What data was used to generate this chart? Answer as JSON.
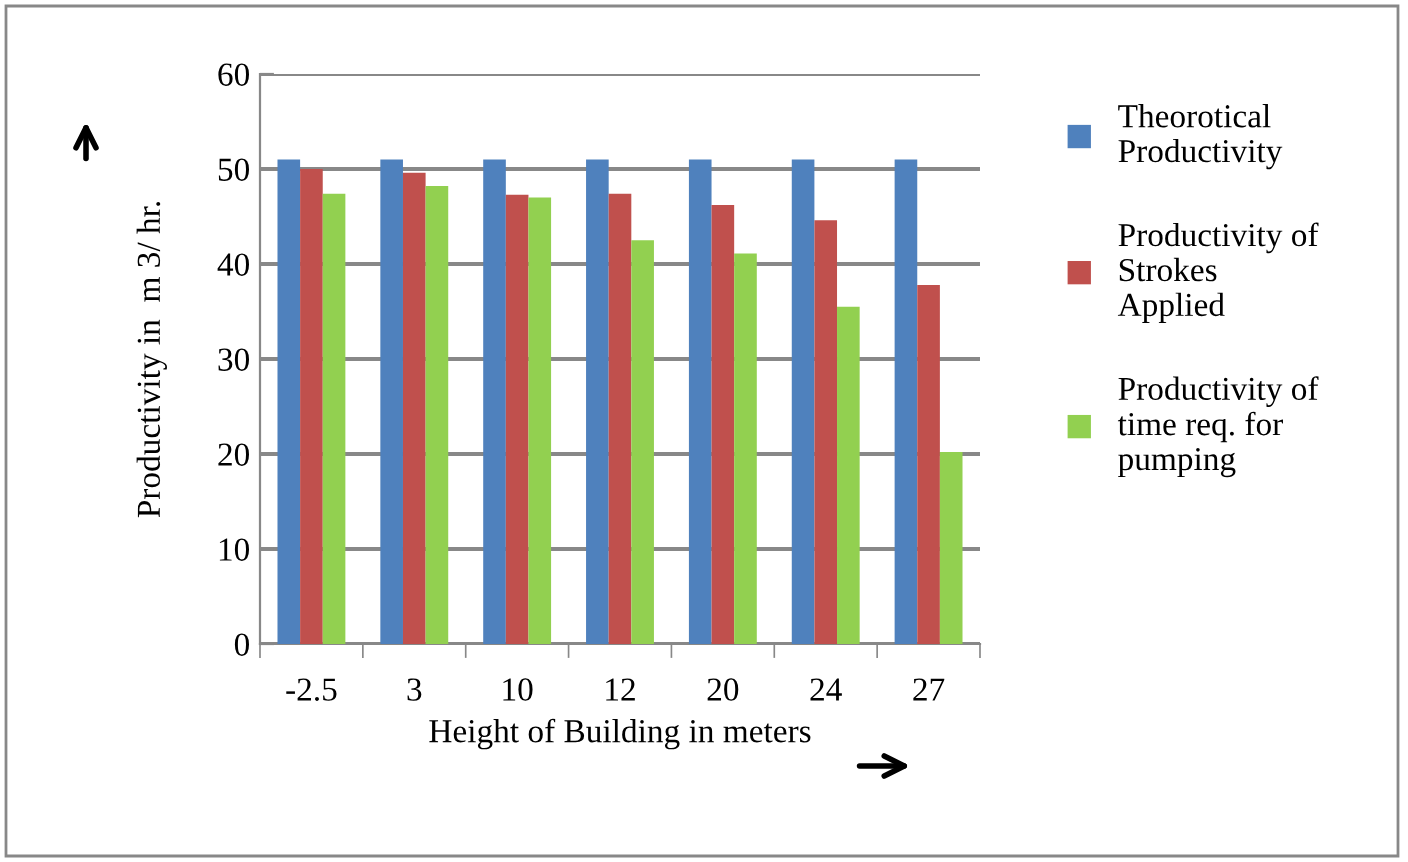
{
  "chart_data": {
    "type": "bar",
    "xlabel": "Height of Building in meters",
    "ylabel": "Productivity in  m 3/ hr.",
    "categories": [
      "-2.5",
      "3",
      "10",
      "12",
      "20",
      "24",
      "27"
    ],
    "series": [
      {
        "name": "Theorotical\nProductivity",
        "color": "#4f81bd",
        "values": [
          51,
          51,
          51,
          51,
          51,
          51,
          51
        ]
      },
      {
        "name": "Productivity of\nStrokes\nApplied",
        "color": "#c0504d",
        "values": [
          50.0,
          49.6,
          47.3,
          47.4,
          46.2,
          44.6,
          37.8
        ]
      },
      {
        "name": "Productivity of\ntime req. for\npumping",
        "color": "#92d050",
        "values": [
          47.4,
          48.2,
          47.0,
          42.5,
          41.1,
          35.5,
          20.2
        ]
      }
    ],
    "ylim": [
      0,
      60
    ],
    "yticks": [
      0,
      10,
      20,
      30,
      40,
      50,
      60
    ],
    "grid": "y",
    "legend": "right"
  }
}
